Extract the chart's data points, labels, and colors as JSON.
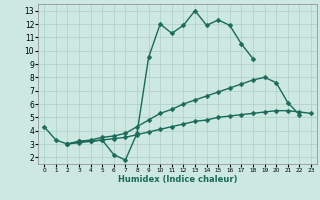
{
  "xlabel": "Humidex (Indice chaleur)",
  "xlim": [
    -0.5,
    23.5
  ],
  "ylim": [
    1.5,
    13.5
  ],
  "yticks": [
    2,
    3,
    4,
    5,
    6,
    7,
    8,
    9,
    10,
    11,
    12,
    13
  ],
  "xticks": [
    0,
    1,
    2,
    3,
    4,
    5,
    6,
    7,
    8,
    9,
    10,
    11,
    12,
    13,
    14,
    15,
    16,
    17,
    18,
    19,
    20,
    21,
    22,
    23
  ],
  "bg_color": "#cce8e0",
  "grid_color": "#aacfc7",
  "line_color": "#1a6b5a",
  "lines": [
    {
      "x": [
        0,
        1,
        2,
        3,
        4,
        5,
        6,
        7,
        8,
        9,
        10,
        11,
        12,
        13,
        14,
        15,
        16,
        17,
        18
      ],
      "y": [
        4.3,
        3.3,
        3.0,
        3.2,
        3.2,
        3.3,
        2.2,
        1.8,
        3.8,
        9.5,
        12.0,
        11.3,
        11.9,
        13.0,
        11.9,
        12.3,
        11.9,
        10.5,
        9.4
      ]
    },
    {
      "x": [
        2,
        3,
        4,
        5,
        6,
        7,
        8,
        9,
        10,
        11,
        12,
        13,
        14,
        15,
        16,
        17,
        18,
        19,
        20,
        21,
        22
      ],
      "y": [
        3.0,
        3.2,
        3.3,
        3.5,
        3.6,
        3.8,
        4.3,
        4.8,
        5.3,
        5.6,
        6.0,
        6.3,
        6.6,
        6.9,
        7.2,
        7.5,
        7.8,
        8.0,
        7.6,
        6.1,
        5.2
      ]
    },
    {
      "x": [
        2,
        3,
        4,
        5,
        6,
        7,
        8,
        9,
        10,
        11,
        12,
        13,
        14,
        15,
        16,
        17,
        18,
        19,
        20,
        21,
        22,
        23
      ],
      "y": [
        3.0,
        3.1,
        3.2,
        3.3,
        3.4,
        3.5,
        3.7,
        3.9,
        4.1,
        4.3,
        4.5,
        4.7,
        4.8,
        5.0,
        5.1,
        5.2,
        5.3,
        5.4,
        5.5,
        5.5,
        5.4,
        5.3
      ]
    }
  ]
}
